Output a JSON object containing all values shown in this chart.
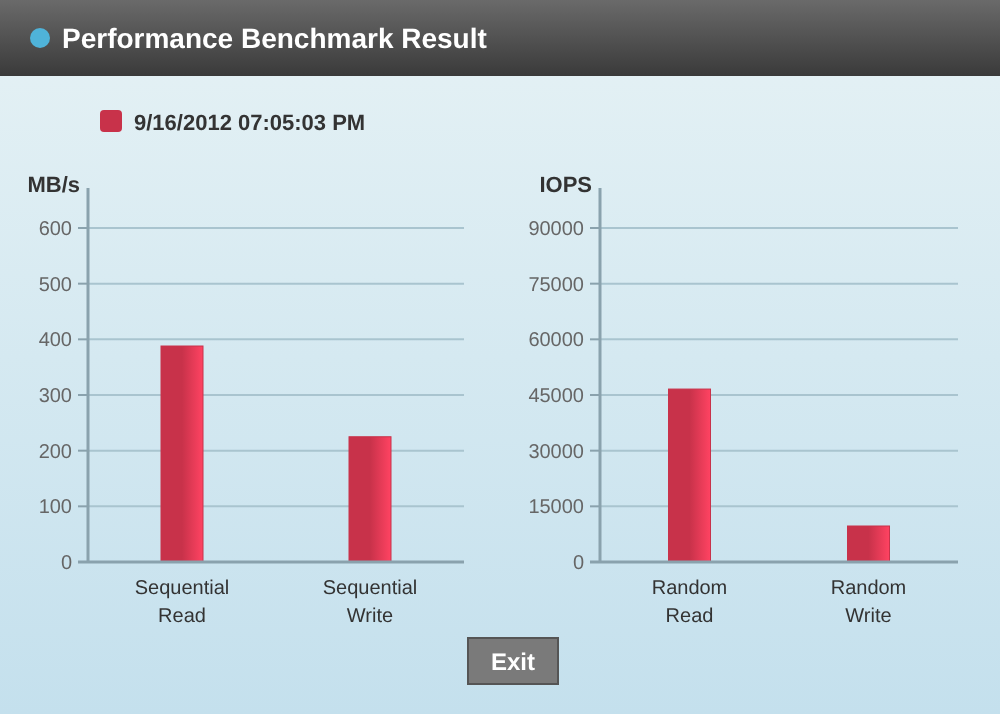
{
  "chart_data": [
    {
      "type": "bar",
      "title": "Performance Benchmark Result",
      "ylabel": "MB/s",
      "categories": [
        "Sequential Read",
        "Sequential Write"
      ],
      "series": [
        {
          "name": "9/16/2012  07:05:03 PM",
          "color": "#c8324a",
          "values": [
            388,
            225
          ]
        }
      ],
      "ylim": [
        0,
        600
      ],
      "yticks": [
        0,
        100,
        200,
        300,
        400,
        500,
        600
      ],
      "grid": "y",
      "legend": "top left"
    },
    {
      "type": "bar",
      "ylabel": "IOPS",
      "categories": [
        "Random Read",
        "Random Write"
      ],
      "series": [
        {
          "color": "#c8324a",
          "values": [
            46600,
            9700
          ]
        }
      ],
      "ylim": [
        0,
        90000
      ],
      "yticks": [
        0,
        15000,
        30000,
        45000,
        60000,
        75000,
        90000
      ],
      "grid": "y",
      "annotations": [
        "Exit"
      ]
    }
  ]
}
